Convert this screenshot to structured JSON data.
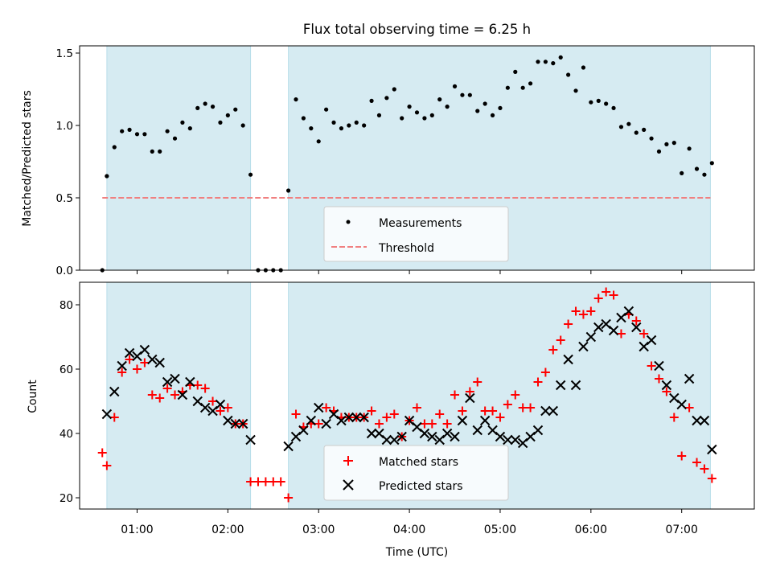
{
  "chart_data": [
    {
      "type": "scatter",
      "title": "Flux total observing time = 6.25 h",
      "ylabel": "Matched/Predicted stars",
      "ylim": [
        0.0,
        1.55
      ],
      "yticks": [
        "0.0",
        "0.5",
        "1.0",
        "1.5"
      ],
      "xlim": [
        "00:22",
        "07:48"
      ],
      "grid": false,
      "legend_placement": "lower center",
      "shaded_intervals": [
        [
          "00:40",
          "02:15"
        ],
        [
          "02:40",
          "07:19"
        ]
      ],
      "series": [
        {
          "name": "Measurements",
          "marker": "dot",
          "color": "#000000",
          "x": [
            "00:37",
            "00:40",
            "00:45",
            "00:50",
            "00:55",
            "01:00",
            "01:05",
            "01:10",
            "01:15",
            "01:20",
            "01:25",
            "01:30",
            "01:35",
            "01:40",
            "01:45",
            "01:50",
            "01:55",
            "02:00",
            "02:05",
            "02:10",
            "02:15",
            "02:20",
            "02:25",
            "02:30",
            "02:35",
            "02:40",
            "02:45",
            "02:50",
            "02:55",
            "03:00",
            "03:05",
            "03:10",
            "03:15",
            "03:20",
            "03:25",
            "03:30",
            "03:35",
            "03:40",
            "03:45",
            "03:50",
            "03:55",
            "04:00",
            "04:05",
            "04:10",
            "04:15",
            "04:20",
            "04:25",
            "04:30",
            "04:35",
            "04:40",
            "04:45",
            "04:50",
            "04:55",
            "05:00",
            "05:05",
            "05:10",
            "05:15",
            "05:20",
            "05:25",
            "05:30",
            "05:35",
            "05:40",
            "05:45",
            "05:50",
            "05:55",
            "06:00",
            "06:05",
            "06:10",
            "06:15",
            "06:20",
            "06:25",
            "06:30",
            "06:35",
            "06:40",
            "06:45",
            "06:50",
            "06:55",
            "07:00",
            "07:05",
            "07:10",
            "07:15",
            "07:20"
          ],
          "y": [
            0.0,
            0.65,
            0.85,
            0.96,
            0.97,
            0.94,
            0.94,
            0.82,
            0.82,
            0.96,
            0.91,
            1.02,
            0.98,
            1.12,
            1.15,
            1.13,
            1.02,
            1.07,
            1.11,
            1.0,
            0.66,
            0.0,
            0.0,
            0.0,
            0.0,
            0.55,
            1.18,
            1.05,
            0.98,
            0.89,
            1.11,
            1.02,
            0.98,
            1.0,
            1.02,
            1.0,
            1.17,
            1.07,
            1.19,
            1.25,
            1.05,
            1.13,
            1.09,
            1.05,
            1.07,
            1.18,
            1.13,
            1.27,
            1.21,
            1.21,
            1.1,
            1.15,
            1.07,
            1.12,
            1.26,
            1.37,
            1.26,
            1.29,
            1.44,
            1.44,
            1.43,
            1.47,
            1.35,
            1.24,
            1.4,
            1.16,
            1.17,
            1.15,
            1.12,
            0.99,
            1.01,
            0.95,
            0.97,
            0.91,
            0.82,
            0.87,
            0.88,
            0.67,
            0.84,
            0.7,
            0.66,
            0.74
          ]
        },
        {
          "name": "Threshold",
          "marker": "dashed-line",
          "color": "#f08080",
          "x": [
            "00:37",
            "07:19"
          ],
          "y": [
            0.5,
            0.5
          ]
        }
      ]
    },
    {
      "type": "scatter",
      "xlabel": "Time (UTC)",
      "ylabel": "Count",
      "ylim": [
        16.5,
        87
      ],
      "yticks": [
        "20",
        "40",
        "60",
        "80"
      ],
      "xticks": [
        "01:00",
        "02:00",
        "03:00",
        "04:00",
        "05:00",
        "06:00",
        "07:00"
      ],
      "xlim": [
        "00:22",
        "07:48"
      ],
      "grid": false,
      "legend_placement": "lower center",
      "shaded_intervals": [
        [
          "00:40",
          "02:15"
        ],
        [
          "02:40",
          "07:19"
        ]
      ],
      "series": [
        {
          "name": "Matched stars",
          "marker": "+",
          "color": "#ff0000",
          "x": [
            "00:37",
            "00:40",
            "00:45",
            "00:50",
            "00:55",
            "01:00",
            "01:05",
            "01:10",
            "01:15",
            "01:20",
            "01:25",
            "01:30",
            "01:35",
            "01:40",
            "01:45",
            "01:50",
            "01:55",
            "02:00",
            "02:05",
            "02:10",
            "02:15",
            "02:20",
            "02:25",
            "02:30",
            "02:35",
            "02:40",
            "02:45",
            "02:50",
            "02:55",
            "03:00",
            "03:05",
            "03:10",
            "03:15",
            "03:20",
            "03:25",
            "03:30",
            "03:35",
            "03:40",
            "03:45",
            "03:50",
            "03:55",
            "04:00",
            "04:05",
            "04:10",
            "04:15",
            "04:20",
            "04:25",
            "04:30",
            "04:35",
            "04:40",
            "04:45",
            "04:50",
            "04:55",
            "05:00",
            "05:05",
            "05:10",
            "05:15",
            "05:20",
            "05:25",
            "05:30",
            "05:35",
            "05:40",
            "05:45",
            "05:50",
            "05:55",
            "06:00",
            "06:05",
            "06:10",
            "06:15",
            "06:20",
            "06:25",
            "06:30",
            "06:35",
            "06:40",
            "06:45",
            "06:50",
            "06:55",
            "07:00",
            "07:05",
            "07:10",
            "07:15",
            "07:20"
          ],
          "y": [
            34,
            30,
            45,
            59,
            63,
            60,
            62,
            52,
            51,
            54,
            52,
            53,
            55,
            55,
            54,
            50,
            47,
            48,
            43,
            43,
            25,
            25,
            25,
            25,
            25,
            20,
            46,
            42,
            43,
            43,
            48,
            47,
            45,
            45,
            45,
            45,
            47,
            43,
            45,
            46,
            39,
            44,
            48,
            43,
            43,
            46,
            43,
            52,
            47,
            53,
            56,
            47,
            47,
            45,
            49,
            52,
            48,
            48,
            56,
            59,
            66,
            69,
            74,
            78,
            77,
            78,
            82,
            84,
            83,
            71,
            77,
            75,
            71,
            61,
            57,
            53,
            45,
            33,
            48,
            31,
            29,
            26
          ]
        },
        {
          "name": "Predicted stars",
          "marker": "x",
          "color": "#000000",
          "x": [
            "00:40",
            "00:45",
            "00:50",
            "00:55",
            "01:00",
            "01:05",
            "01:10",
            "01:15",
            "01:20",
            "01:25",
            "01:30",
            "01:35",
            "01:40",
            "01:45",
            "01:50",
            "01:55",
            "02:00",
            "02:05",
            "02:10",
            "02:15",
            "02:40",
            "02:45",
            "02:50",
            "02:55",
            "03:00",
            "03:05",
            "03:10",
            "03:15",
            "03:20",
            "03:25",
            "03:30",
            "03:35",
            "03:40",
            "03:45",
            "03:50",
            "03:55",
            "04:00",
            "04:05",
            "04:10",
            "04:15",
            "04:20",
            "04:25",
            "04:30",
            "04:35",
            "04:40",
            "04:45",
            "04:50",
            "04:55",
            "05:00",
            "05:05",
            "05:10",
            "05:15",
            "05:20",
            "05:25",
            "05:30",
            "05:35",
            "05:40",
            "05:45",
            "05:50",
            "05:55",
            "06:00",
            "06:05",
            "06:10",
            "06:15",
            "06:20",
            "06:25",
            "06:30",
            "06:35",
            "06:40",
            "06:45",
            "06:50",
            "06:55",
            "07:00",
            "07:05",
            "07:10",
            "07:15",
            "07:20"
          ],
          "y": [
            46,
            53,
            61,
            65,
            64,
            66,
            63,
            62,
            56,
            57,
            52,
            56,
            50,
            48,
            47,
            49,
            44,
            43,
            43,
            38,
            36,
            39,
            41,
            44,
            48,
            43,
            46,
            44,
            45,
            45,
            45,
            40,
            40,
            38,
            38,
            39,
            44,
            42,
            40,
            39,
            38,
            40,
            39,
            44,
            51,
            41,
            44,
            41,
            39,
            38,
            38,
            37,
            39,
            41,
            47,
            47,
            55,
            63,
            55,
            67,
            70,
            73,
            74,
            72,
            76,
            78,
            73,
            67,
            69,
            61,
            55,
            51,
            49,
            57,
            44,
            44,
            35
          ]
        }
      ]
    }
  ]
}
